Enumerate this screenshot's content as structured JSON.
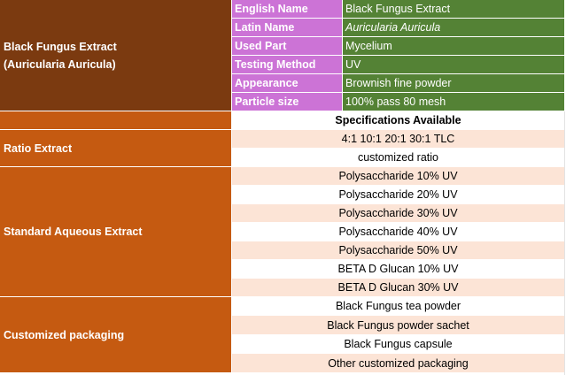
{
  "product": {
    "title_line1": "Black Fungus Extract",
    "title_line2": "(Auricularia Auricula)"
  },
  "info_rows": [
    {
      "label": "English Name",
      "value": "Black Fungus Extract"
    },
    {
      "label": "Latin Name",
      "value": "Auricularia Auricula"
    },
    {
      "label": "Used Part",
      "value": "Mycelium"
    },
    {
      "label": "Testing Method",
      "value": "UV"
    },
    {
      "label": "Appearance",
      "value": "Brownish fine powder"
    },
    {
      "label": "Particle size",
      "value": "100% pass 80 mesh"
    }
  ],
  "specs_header": "Specifications Available",
  "groups": [
    {
      "name": "Ratio Extract",
      "items": [
        "4:1 10:1 20:1 30:1 TLC",
        "customized ratio"
      ]
    },
    {
      "name": "Standard Aqueous Extract",
      "items": [
        "Polysaccharide 10% UV",
        "Polysaccharide 20% UV",
        "Polysaccharide 30% UV",
        "Polysaccharide 40% UV",
        "Polysaccharide 50% UV",
        "BETA D Glucan 10% UV",
        "BETA D Glucan 30% UV"
      ]
    },
    {
      "name": "Customized packaging",
      "items": [
        "Black Fungus tea powder",
        "Black Fungus powder sachet",
        "Black Fungus capsule",
        "Other customized packaging"
      ]
    }
  ],
  "colors": {
    "header_brown": "#7b3a10",
    "group_orange": "#c55a11",
    "label_purple": "#cc73d6",
    "value_green": "#548235",
    "row_pink": "#fce4d6"
  }
}
